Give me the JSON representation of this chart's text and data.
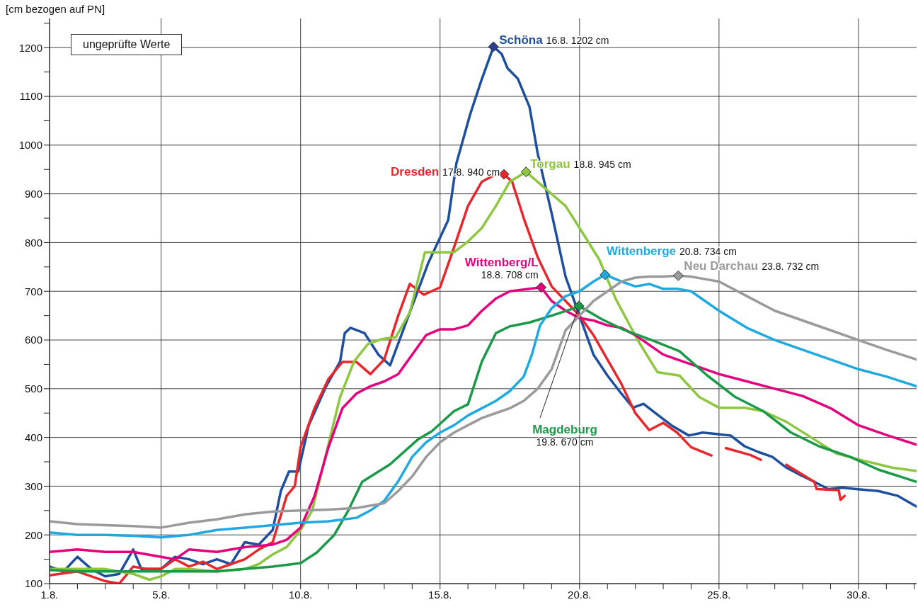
{
  "chart_data": {
    "type": "line",
    "ylabel": "[cm bezogen auf PN]",
    "xlim": [
      "--08-01",
      "--09-01T02:00"
    ],
    "ylim": [
      100,
      1260
    ],
    "xticks": [
      {
        "value": "--08-01",
        "label": "1.8."
      },
      {
        "value": "--08-02",
        "label": null
      },
      {
        "value": "--08-03",
        "label": null
      },
      {
        "value": "--08-04",
        "label": null
      },
      {
        "value": "--08-05",
        "label": "5.8."
      },
      {
        "value": "--08-06",
        "label": null
      },
      {
        "value": "--08-07",
        "label": null
      },
      {
        "value": "--08-08",
        "label": null
      },
      {
        "value": "--08-09",
        "label": null
      },
      {
        "value": "--08-10",
        "label": "10.8."
      },
      {
        "value": "--08-11",
        "label": null
      },
      {
        "value": "--08-12",
        "label": null
      },
      {
        "value": "--08-13",
        "label": null
      },
      {
        "value": "--08-14",
        "label": null
      },
      {
        "value": "--08-15",
        "label": "15.8."
      },
      {
        "value": "--08-16",
        "label": null
      },
      {
        "value": "--08-17",
        "label": null
      },
      {
        "value": "--08-18",
        "label": null
      },
      {
        "value": "--08-19",
        "label": null
      },
      {
        "value": "--08-20",
        "label": "20.8."
      },
      {
        "value": "--08-21",
        "label": null
      },
      {
        "value": "--08-22",
        "label": null
      },
      {
        "value": "--08-23",
        "label": null
      },
      {
        "value": "--08-24",
        "label": null
      },
      {
        "value": "--08-25",
        "label": "25.8."
      },
      {
        "value": "--08-26",
        "label": null
      },
      {
        "value": "--08-27",
        "label": null
      },
      {
        "value": "--08-28",
        "label": null
      },
      {
        "value": "--08-29",
        "label": null
      },
      {
        "value": "--08-30",
        "label": "30.8."
      },
      {
        "value": "--08-31",
        "label": null
      },
      {
        "value": "--09-01",
        "label": null
      }
    ],
    "yticks": [
      100,
      {
        "value": 150,
        "label": null
      },
      200,
      {
        "value": 250,
        "label": null
      },
      300,
      {
        "value": 350,
        "label": null
      },
      400,
      {
        "value": 450,
        "label": null
      },
      500,
      {
        "value": 550,
        "label": null
      },
      600,
      {
        "value": 650,
        "label": null
      },
      700,
      {
        "value": 750,
        "label": null
      },
      800,
      {
        "value": 850,
        "label": null
      },
      900,
      {
        "value": 950,
        "label": null
      },
      1000,
      {
        "value": 1050,
        "label": null
      },
      1100,
      {
        "value": 1150,
        "label": null
      },
      1200,
      {
        "value": 1250,
        "label": null
      }
    ],
    "grid": true,
    "series": [
      {
        "name": "Schöna",
        "color": "#1d4f9e",
        "x": [
          "--08-01",
          "--08-01T12:00",
          "--08-02",
          "--08-02T12:00",
          "--08-03",
          "--08-03T12:00",
          "--08-04",
          "--08-04T07:00",
          "--08-05",
          "--08-05T12:00",
          "--08-06",
          "--08-06T12:00",
          "--08-07",
          "--08-07T12:00",
          "--08-08",
          "--08-08T12:00",
          "--08-09",
          "--08-09T07:00",
          "--08-09T14:00",
          "--08-09T22:00",
          "--08-10T07:00",
          "--08-10T22:00",
          "--08-11T10:00",
          "--08-11T14:00",
          "--08-11T19:00",
          "--08-12T07:00",
          "--08-12T19:00",
          "--08-13T05:00",
          "--08-13T22:00",
          "--08-14T14:00",
          "--08-15T07:00",
          "--08-15T14:00",
          "--08-16T02:00",
          "--08-16T12:00",
          "--08-16T22:00",
          "--08-17T05:00",
          "--08-17T10:00",
          "--08-17T19:00",
          "--08-18T05:00",
          "--08-18T12:00",
          "--08-19",
          "--08-19T12:00",
          "--08-20",
          "--08-20T12:00",
          "--08-21",
          "--08-21T12:00",
          "--08-21T22:00",
          "--08-22T07:00",
          "--08-22T19:00",
          "--08-23T07:00",
          "--08-23T22:00",
          "--08-24T10:00",
          "--08-24T22:00",
          "--08-25T10:00",
          "--08-25T22:00",
          "--08-26T10:00",
          "--08-26T22:00",
          "--08-27T10:00",
          "--08-27T22:00",
          "--08-28T10:00",
          "--08-28T22:00",
          "--08-29T10:00",
          "--08-29T22:00",
          "--08-30T17:00",
          "--08-31T10:00",
          "--09-01T02:00"
        ],
        "values": [
          135,
          125,
          155,
          130,
          115,
          120,
          170,
          130,
          130,
          155,
          150,
          140,
          150,
          140,
          185,
          180,
          210,
          290,
          330,
          330,
          425,
          505,
          556,
          614,
          625,
          614,
          570,
          548,
          657,
          759,
          846,
          962,
          1064,
          1136,
          1202,
          1187,
          1158,
          1136,
          1078,
          983,
          860,
          730,
          650,
          570,
          527,
          490,
          461,
          469,
          447,
          425,
          404,
          410,
          407,
          404,
          382,
          370,
          360,
          338,
          323,
          309,
          294,
          297,
          294,
          290,
          280,
          258
        ]
      },
      {
        "name": "Dresden",
        "color": "#e8262b",
        "x": [
          "--08-01",
          "--08-02",
          "--08-03",
          "--08-03T12:00",
          "--08-04",
          "--08-04T12:00",
          "--08-05",
          "--08-05T12:00",
          "--08-06",
          "--08-06T12:00",
          "--08-07",
          "--08-07T12:00",
          "--08-08",
          "--08-08T12:00",
          "--08-09",
          "--08-09T12:00",
          "--08-09T19:00",
          "--08-10",
          "--08-10T12:00",
          "--08-11",
          "--08-11T12:00",
          "--08-12",
          "--08-12T12:00",
          "--08-13",
          "--08-13T12:00",
          "--08-13T22:00",
          "--08-14T10:00",
          "--08-15",
          "--08-15T12:00",
          "--08-16",
          "--08-16T12:00",
          "--08-17",
          "--08-17T07:00",
          "--08-17T14:00",
          "--08-18",
          "--08-18T12:00",
          "--08-19",
          "--08-19T12:00",
          "--08-20",
          "--08-20T12:00",
          "--08-21",
          "--08-21T12:00",
          "--08-22",
          "--08-22T12:00",
          "--08-23",
          "--08-23T12:00",
          "--08-24",
          "--08-24T17:30",
          "--08-25",
          "--08-25T06:00",
          "--08-26T03:00",
          "--08-26T12:00",
          "--08-27",
          "--08-27T10:00",
          "--08-28T10:00",
          "--08-28T12:00",
          "--08-29T07:00",
          "--08-29T08:30",
          "--08-29T12:00"
        ],
        "values": [
          117,
          125,
          105,
          100,
          135,
          130,
          130,
          150,
          135,
          145,
          130,
          140,
          150,
          170,
          185,
          280,
          300,
          380,
          460,
          520,
          555,
          555,
          530,
          560,
          650,
          715,
          693,
          708,
          790,
          875,
          925,
          940,
          940,
          925,
          850,
          770,
          710,
          680,
          650,
          610,
          560,
          510,
          450,
          415,
          430,
          410,
          380,
          363,
          null,
          378,
          364,
          354,
          null,
          344,
          309,
          294,
          292,
          272,
          280
        ]
      },
      {
        "name": "Torgau",
        "color": "#8dc63f",
        "x": [
          "--08-01",
          "--08-02",
          "--08-03",
          "--08-04",
          "--08-04T14:00",
          "--08-05",
          "--08-05T12:00",
          "--08-06",
          "--08-07",
          "--08-08",
          "--08-08T12:00",
          "--08-09",
          "--08-09T12:00",
          "--08-10",
          "--08-10T10:00",
          "--08-10T22:00",
          "--08-11T10:00",
          "--08-11T22:00",
          "--08-12T10:00",
          "--08-12T22:00",
          "--08-13T10:00",
          "--08-13T22:00",
          "--08-14T11:00",
          "--08-15T12:00",
          "--08-16",
          "--08-16T12:00",
          "--08-17",
          "--08-17T12:00",
          "--08-18T02:00",
          "--08-18T19:00",
          "--08-19T12:00",
          "--08-20",
          "--08-20T17:00",
          "--08-21T07:00",
          "--08-22T02:00",
          "--08-22T19:00",
          "--08-23T14:00",
          "--08-24T07:00",
          "--08-25",
          "--08-25T22:00",
          "--08-26T14:00",
          "--08-27T10:00",
          "--08-28T10:00",
          "--08-29T05:00",
          "--08-30T05:00",
          "--08-31T05:00",
          "--09-01T02:00"
        ],
        "values": [
          130,
          130,
          130,
          120,
          108,
          115,
          130,
          130,
          125,
          130,
          140,
          160,
          175,
          210,
          250,
          367,
          483,
          556,
          592,
          602,
          606,
          657,
          780,
          780,
          802,
          830,
          875,
          925,
          945,
          910,
          875,
          830,
          765,
          685,
          600,
          534,
          527,
          483,
          461,
          461,
          454,
          432,
          396,
          367,
          352,
          338,
          331
        ]
      },
      {
        "name": "Wittenberg/L",
        "color": "#e5007d",
        "x": [
          "--08-01",
          "--08-02",
          "--08-03",
          "--08-04",
          "--08-05",
          "--08-05T12:00",
          "--08-06",
          "--08-07",
          "--08-08",
          "--08-09",
          "--08-09T12:00",
          "--08-10",
          "--08-10T12:00",
          "--08-11",
          "--08-11T12:00",
          "--08-12",
          "--08-12T12:00",
          "--08-13",
          "--08-13T12:00",
          "--08-14",
          "--08-14T12:00",
          "--08-15",
          "--08-15T12:00",
          "--08-16",
          "--08-16T12:00",
          "--08-17",
          "--08-17T12:00",
          "--08-18T15:00",
          "--08-19",
          "--08-19T12:00",
          "--08-20",
          "--08-20T12:00",
          "--08-21",
          "--08-21T12:00",
          "--08-22",
          "--08-22T12:00",
          "--08-23",
          "--08-24",
          "--08-25",
          "--08-26",
          "--08-27",
          "--08-28",
          "--08-29",
          "--08-30",
          "--08-31",
          "--09-01T02:00"
        ],
        "values": [
          165,
          170,
          165,
          165,
          155,
          150,
          170,
          165,
          175,
          180,
          190,
          215,
          280,
          380,
          460,
          490,
          505,
          515,
          530,
          570,
          610,
          622,
          622,
          630,
          660,
          685,
          700,
          708,
          680,
          660,
          645,
          640,
          630,
          625,
          610,
          590,
          570,
          550,
          530,
          515,
          500,
          485,
          460,
          425,
          405,
          385
        ]
      },
      {
        "name": "Magdeburg",
        "color": "#1a9a48",
        "x": [
          "--08-01",
          "--08-02",
          "--08-03",
          "--08-04",
          "--08-05",
          "--08-06",
          "--08-07",
          "--08-08",
          "--08-09",
          "--08-10",
          "--08-10T14:00",
          "--08-11T05:00",
          "--08-11T17:00",
          "--08-12T05:00",
          "--08-13T05:00",
          "--08-14T05:00",
          "--08-14T17:00",
          "--08-15T12:00",
          "--08-16",
          "--08-16T12:00",
          "--08-17",
          "--08-17T12:00",
          "--08-18T05:00",
          "--08-19",
          "--08-19T19:00",
          "--08-19T23:30",
          "--08-20T19:00",
          "--08-21T14:00",
          "--08-22T14:00",
          "--08-23T14:00",
          "--08-24T14:00",
          "--08-25T14:00",
          "--08-26T14:00",
          "--08-27T14:00",
          "--08-28T14:00",
          "--08-29T17:00",
          "--08-30T17:00",
          "--09-01T02:00"
        ],
        "values": [
          128,
          125,
          125,
          125,
          125,
          125,
          125,
          130,
          135,
          142,
          164,
          200,
          250,
          309,
          345,
          396,
          413,
          454,
          468,
          556,
          614,
          628,
          636,
          650,
          665,
          670,
          643,
          621,
          600,
          577,
          527,
          483,
          454,
          410,
          382,
          360,
          334,
          309
        ]
      },
      {
        "name": "Wittenberge",
        "color": "#1ea9e1",
        "x": [
          "--08-01",
          "--08-02",
          "--08-03",
          "--08-04",
          "--08-05",
          "--08-06",
          "--08-07",
          "--08-08",
          "--08-09",
          "--08-10",
          "--08-11",
          "--08-12",
          "--08-12T12:00",
          "--08-13",
          "--08-13T12:00",
          "--08-14",
          "--08-14T12:00",
          "--08-15",
          "--08-15T12:00",
          "--08-16",
          "--08-16T12:00",
          "--08-17",
          "--08-17T12:00",
          "--08-18",
          "--08-18T07:00",
          "--08-18T14:00",
          "--08-19",
          "--08-19T12:00",
          "--08-20",
          "--08-20T12:00",
          "--08-20T22:00",
          "--08-21T12:00",
          "--08-22",
          "--08-22T12:00",
          "--08-23",
          "--08-23T12:00",
          "--08-24",
          "--08-24T12:00",
          "--08-25",
          "--08-26",
          "--08-27",
          "--08-28",
          "--08-29",
          "--08-30",
          "--08-31",
          "--09-01T02:00"
        ],
        "values": [
          205,
          200,
          200,
          198,
          195,
          200,
          210,
          215,
          220,
          225,
          228,
          235,
          250,
          270,
          310,
          360,
          390,
          410,
          425,
          445,
          460,
          475,
          495,
          525,
          570,
          630,
          665,
          690,
          700,
          720,
          734,
          720,
          710,
          715,
          705,
          705,
          700,
          680,
          660,
          625,
          600,
          580,
          560,
          540,
          525,
          505
        ]
      },
      {
        "name": "Neu Darchau",
        "color": "#9a9a9c",
        "x": [
          "--08-01",
          "--08-02",
          "--08-03",
          "--08-04",
          "--08-05",
          "--08-06",
          "--08-07",
          "--08-08",
          "--08-09",
          "--08-10",
          "--08-11",
          "--08-12",
          "--08-13",
          "--08-13T12:00",
          "--08-14",
          "--08-14T12:00",
          "--08-15",
          "--08-15T12:00",
          "--08-16",
          "--08-16T12:00",
          "--08-17",
          "--08-17T12:00",
          "--08-18",
          "--08-18T12:00",
          "--08-19",
          "--08-19T12:00",
          "--08-20",
          "--08-20T12:00",
          "--08-21",
          "--08-21T12:00",
          "--08-22",
          "--08-22T12:00",
          "--08-23",
          "--08-23T13:00",
          "--08-24",
          "--08-25",
          "--08-26",
          "--08-27",
          "--08-28",
          "--08-29",
          "--08-30",
          "--08-31",
          "--09-01T02:00"
        ],
        "values": [
          228,
          222,
          220,
          218,
          215,
          225,
          232,
          242,
          248,
          250,
          252,
          255,
          265,
          290,
          320,
          360,
          390,
          410,
          425,
          440,
          450,
          460,
          475,
          500,
          540,
          620,
          650,
          680,
          700,
          720,
          728,
          730,
          730,
          732,
          730,
          720,
          690,
          660,
          640,
          620,
          600,
          580,
          560
        ]
      },
      {
        "type": "scatter",
        "marker": "diamond",
        "x": [
          "--08-16T22:00",
          "--08-17T07:00",
          "--08-18T02:00",
          "--08-18T15:00",
          "--08-19T23:30",
          "--08-20T22:00",
          "--08-23T13:00"
        ],
        "values": [
          1202,
          940,
          945,
          708,
          670,
          734,
          732
        ],
        "colors": [
          "#2a3f8f",
          "#e8262b",
          "#8dc63f",
          "#e5007d",
          "#1a9a48",
          "#1ea9e1",
          "#9a9a9c"
        ]
      }
    ],
    "annotations": [
      "16.8. 1202 cm",
      "17.8. 940 cm",
      "18.8. 945 cm",
      "18.8. 708 cm",
      "19.8. 670 cm",
      "20.8. 734 cm",
      "23.8. 732 cm",
      "ungeprüfte Werte"
    ]
  }
}
